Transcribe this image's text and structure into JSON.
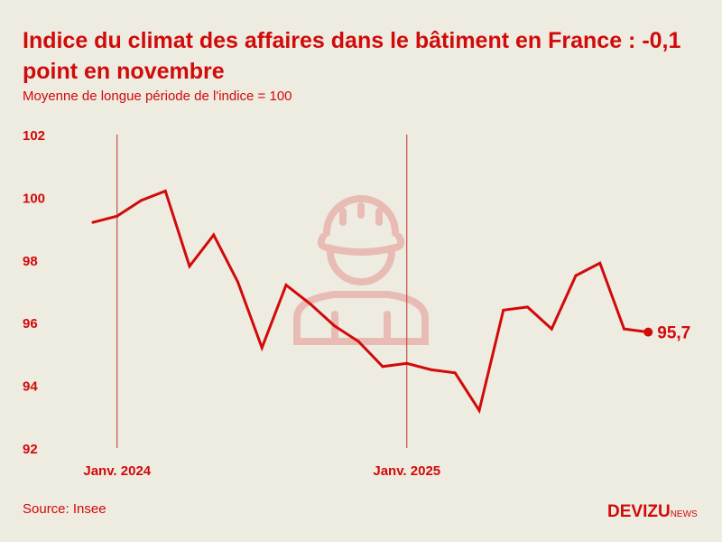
{
  "title": "Indice du climat des affaires dans le bâtiment en France : -0,1 point en novembre",
  "subtitle": "Moyenne de longue période de l'indice = 100",
  "source": "Source: Insee",
  "logo": {
    "main": "DEVIZU",
    "suffix": "NEWS"
  },
  "icons": {
    "background": "construction-worker-helmet-icon"
  },
  "colors": {
    "line": "#d10a0a",
    "background": "#eeebe1",
    "icon": "#e8bcb4"
  },
  "chart_data": {
    "type": "line",
    "title": "Indice du climat des affaires dans le bâtiment en France : -0,1 point en novembre",
    "subtitle": "Moyenne de longue période de l'indice = 100",
    "x": [
      "2023-12",
      "2024-01",
      "2024-02",
      "2024-03",
      "2024-04",
      "2024-05",
      "2024-06",
      "2024-07",
      "2024-08",
      "2024-09",
      "2024-10",
      "2024-11",
      "2024-12",
      "2025-01",
      "2025-02",
      "2025-03",
      "2025-04",
      "2025-05",
      "2025-06",
      "2025-07",
      "2025-08",
      "2025-09",
      "2025-10",
      "2025-11"
    ],
    "values": [
      99.2,
      99.4,
      99.9,
      100.2,
      97.8,
      98.8,
      97.3,
      95.2,
      97.2,
      96.6,
      95.9,
      95.4,
      94.6,
      94.7,
      94.5,
      94.4,
      93.2,
      96.4,
      96.5,
      95.8,
      97.5,
      97.9,
      95.8,
      95.7
    ],
    "ylim": [
      92,
      102
    ],
    "yticks": [
      "92",
      "94",
      "96",
      "98",
      "100",
      "102"
    ],
    "xticks": [
      {
        "index": 1,
        "label": "Janv. 2024"
      },
      {
        "index": 13,
        "label": "Janv. 2025"
      }
    ],
    "last_label": "95,7",
    "grid": false
  }
}
